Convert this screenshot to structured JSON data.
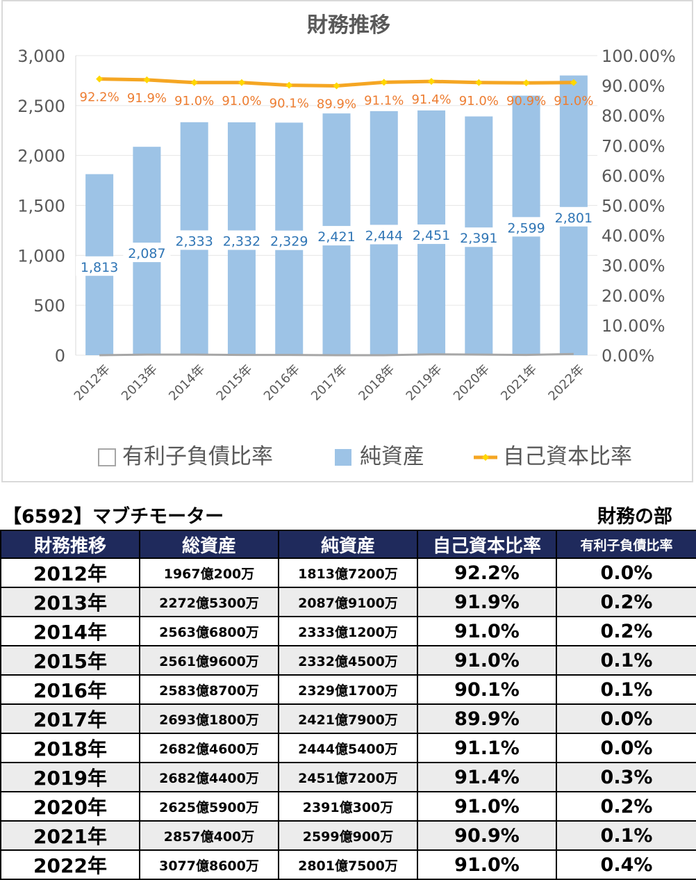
{
  "chart_data": {
    "type": "bar",
    "title": "財務推移",
    "categories": [
      "2012年",
      "2013年",
      "2014年",
      "2015年",
      "2016年",
      "2017年",
      "2018年",
      "2019年",
      "2020年",
      "2021年",
      "2022年"
    ],
    "series": [
      {
        "name": "有利子負債比率",
        "axis": "right",
        "kind": "line",
        "values": [
          0.0,
          0.2,
          0.2,
          0.1,
          0.1,
          0.0,
          0.0,
          0.3,
          0.2,
          0.1,
          0.4
        ]
      },
      {
        "name": "純資産",
        "axis": "left",
        "kind": "bar",
        "values": [
          1813,
          2087,
          2333,
          2332,
          2329,
          2421,
          2444,
          2451,
          2391,
          2599,
          2801
        ],
        "labels": [
          "1,813",
          "2,087",
          "2,333",
          "2,332",
          "2,329",
          "2,421",
          "2,444",
          "2,451",
          "2,391",
          "2,599",
          "2,801"
        ]
      },
      {
        "name": "自己資本比率",
        "axis": "right",
        "kind": "line",
        "values": [
          92.2,
          91.9,
          91.0,
          91.0,
          90.1,
          89.9,
          91.1,
          91.4,
          91.0,
          90.9,
          91.0
        ],
        "labels": [
          "92.2%",
          "91.9%",
          "91.0%",
          "91.0%",
          "90.1%",
          "89.9%",
          "91.1%",
          "91.4%",
          "91.0%",
          "90.9%",
          "91.0%"
        ]
      }
    ],
    "ylim": [
      0,
      3000
    ],
    "y2lim": [
      0,
      100
    ],
    "yticks": [
      "0",
      "500",
      "1,000",
      "1,500",
      "2,000",
      "2,500",
      "3,000"
    ],
    "y2ticks": [
      "0.00%",
      "10.00%",
      "20.00%",
      "30.00%",
      "40.00%",
      "50.00%",
      "60.00%",
      "70.00%",
      "80.00%",
      "90.00%",
      "100.00%"
    ],
    "grid": true,
    "legend": "bottom",
    "colors": {
      "bar": "#9dc3e6",
      "equity_line": "#f5a623",
      "equity_marker": "#ffd700",
      "debt_line": "#a6a6a6",
      "equity_label": "#ed7d31",
      "bar_label": "#2f75b5",
      "axis_text": "#595959",
      "title_text": "#595959"
    }
  },
  "header": {
    "company": "【6592】マブチモーター",
    "section": "財務の部"
  },
  "table": {
    "headers": [
      "財務推移",
      "総資産",
      "純資産",
      "自己資本比率",
      "有利子負債比率"
    ],
    "rows": [
      [
        "2012年",
        "1967億200万",
        "1813億7200万",
        "92.2%",
        "0.0%"
      ],
      [
        "2013年",
        "2272億5300万",
        "2087億9100万",
        "91.9%",
        "0.2%"
      ],
      [
        "2014年",
        "2563億6800万",
        "2333億1200万",
        "91.0%",
        "0.2%"
      ],
      [
        "2015年",
        "2561億9600万",
        "2332億4500万",
        "91.0%",
        "0.1%"
      ],
      [
        "2016年",
        "2583億8700万",
        "2329億1700万",
        "90.1%",
        "0.1%"
      ],
      [
        "2017年",
        "2693億1800万",
        "2421億7900万",
        "89.9%",
        "0.0%"
      ],
      [
        "2018年",
        "2682億4600万",
        "2444億5400万",
        "91.1%",
        "0.0%"
      ],
      [
        "2019年",
        "2682億4400万",
        "2451億7200万",
        "91.4%",
        "0.3%"
      ],
      [
        "2020年",
        "2625億5900万",
        "2391億300万",
        "91.0%",
        "0.2%"
      ],
      [
        "2021年",
        "2857億400万",
        "2599億900万",
        "90.9%",
        "0.1%"
      ],
      [
        "2022年",
        "3077億8600万",
        "2801億7500万",
        "91.0%",
        "0.4%"
      ]
    ],
    "colors": {
      "header_bg": "#1f2a5c",
      "header_text": "#ffffff",
      "alt_row_bg": "#ececec"
    }
  }
}
